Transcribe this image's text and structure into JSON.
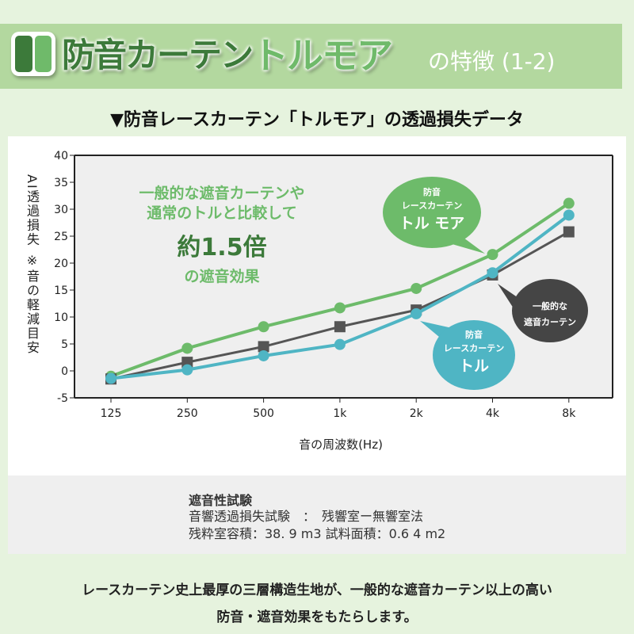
{
  "header": {
    "title_part1": "防音カーテン",
    "title_part2": "トルモア",
    "title_part3": "の特徴 (1-2)"
  },
  "subtitle": "▼防音レースカーテン「トルモア」の透過損失データ",
  "chart_data": {
    "type": "line",
    "title": "防音レースカーテン「トルモア」の透過損失データ",
    "xlabel": "音の周波数(Hz)",
    "ylabel": "AI透過損失 ※音の軽減目安",
    "categories": [
      "125",
      "250",
      "500",
      "1k",
      "2k",
      "4k",
      "8k"
    ],
    "ylim": [
      -5,
      40
    ],
    "yticks": [
      "40",
      "35",
      "30",
      "25",
      "20",
      "15",
      "10",
      "5",
      "0",
      "-5"
    ],
    "series": [
      {
        "name": "防音レースカーテン トルモア",
        "color": "#6dbb6a",
        "marker": "circle",
        "values": [
          -1.0,
          4.2,
          8.2,
          11.7,
          15.3,
          21.6,
          31.1
        ]
      },
      {
        "name": "一般的な遮音カーテン",
        "color": "#555555",
        "marker": "square",
        "values": [
          -1.5,
          1.6,
          4.5,
          8.2,
          11.3,
          17.8,
          25.8
        ]
      },
      {
        "name": "防音レースカーテン トル",
        "color": "#4fb5c4",
        "marker": "circle",
        "values": [
          -1.4,
          0.2,
          2.8,
          4.9,
          10.6,
          18.2,
          28.9
        ]
      }
    ],
    "annotation": {
      "line1": "一般的な遮音カーテンや",
      "line2": "通常のトルと比較して",
      "big": "約1.5倍",
      "line3": "の遮音効果"
    },
    "bubbles": [
      {
        "l1": "防音",
        "l2": "レースカーテン",
        "l3": "トル モア"
      },
      {
        "l1": "一般的な",
        "l2": "遮音カーテン"
      },
      {
        "l1": "防音",
        "l2": "レースカーテン",
        "l3": "トル"
      }
    ]
  },
  "notes": {
    "heading": "遮音性試験",
    "line1": "音響透過損失試験　：　残響室ー無響室法",
    "line2": "残粋室容積：38. 9 m3 試料面積：0.6 4 m2"
  },
  "footer": {
    "line1": "レースカーテン史上最厚の三層構造生地が、一般的な遮音カーテン以上の高い",
    "line2": "防音・遮音効果をもたらします。"
  }
}
